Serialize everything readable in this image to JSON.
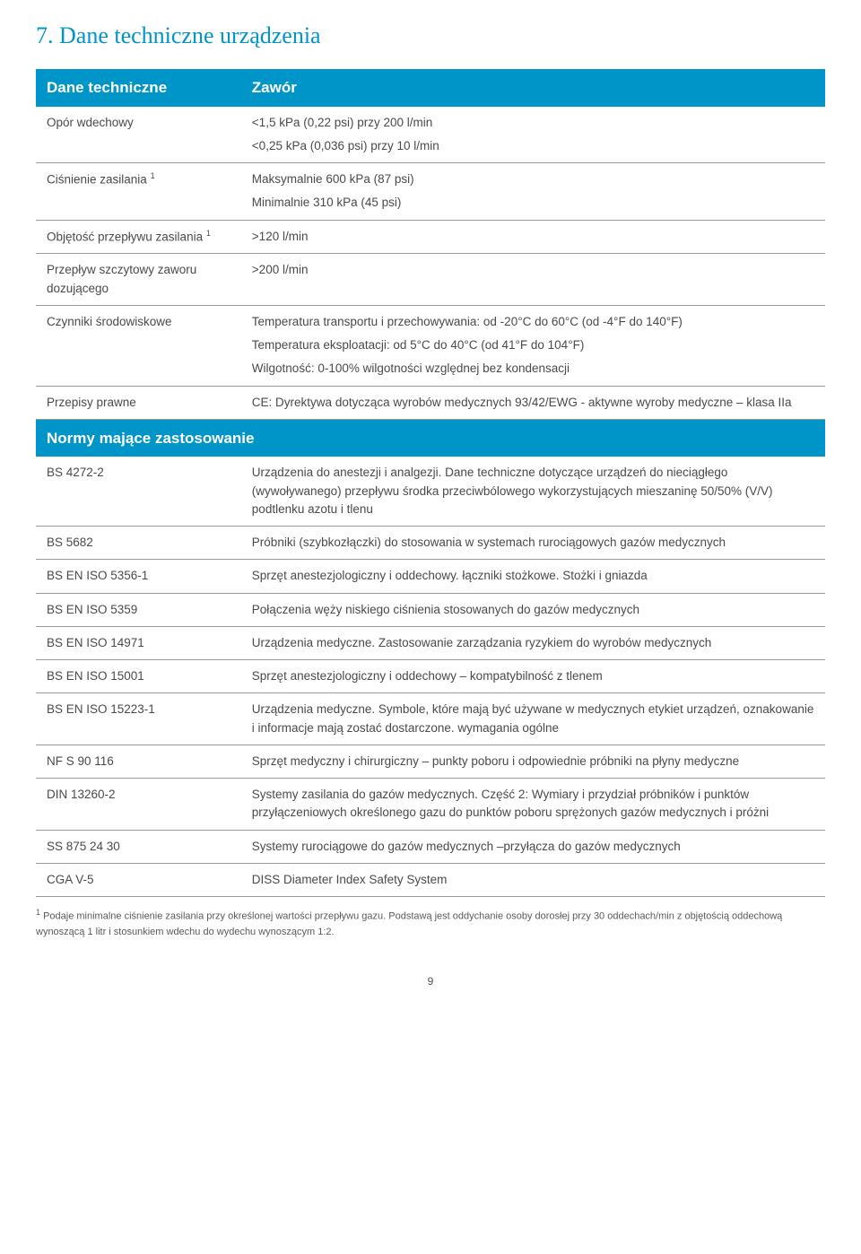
{
  "section": {
    "number": "7.",
    "title": "Dane techniczne urządzenia"
  },
  "tableA": {
    "header": {
      "left": "Dane techniczne",
      "right": "Zawór"
    },
    "rows": [
      {
        "label": "Opór wdechowy",
        "values": [
          "<1,5 kPa (0,22 psi) przy 200 l/min",
          "<0,25 kPa (0,036 psi) przy 10 l/min"
        ]
      },
      {
        "label_html": "Ciśnienie zasilania <sup class='s1'>1</sup>",
        "values": [
          "Maksymalnie 600 kPa (87 psi)",
          "Minimalnie 310 kPa (45 psi)"
        ]
      },
      {
        "label_html": "Objętość przepływu zasilania <sup class='s1'>1</sup>",
        "values": [
          ">120 l/min"
        ]
      },
      {
        "label": "Przepływ szczytowy zaworu dozującego",
        "values": [
          ">200 l/min"
        ]
      },
      {
        "label": "Czynniki środowiskowe",
        "values": [
          "Temperatura transportu i przechowywania: od -20°C do 60°C (od -4°F do 140°F)",
          "Temperatura eksploatacji: od 5°C do 40°C (od 41°F do 104°F)",
          "Wilgotność: 0-100% wilgotności względnej bez kondensacji"
        ]
      },
      {
        "label": "Przepisy prawne",
        "values": [
          "CE: Dyrektywa dotycząca wyrobów medycznych 93/42/EWG - aktywne wyroby medyczne – klasa IIa"
        ]
      }
    ]
  },
  "tableB": {
    "header": "Normy mające zastosowanie",
    "rows": [
      {
        "label": "BS 4272-2",
        "value": "Urządzenia do anestezji i analgezji. Dane techniczne dotyczące urządzeń do nieciągłego (wywoływanego) przepływu środka przeciwbólowego wykorzystujących mieszaninę 50/50% (V/V) podtlenku azotu i tlenu"
      },
      {
        "label": "BS 5682",
        "value": "Próbniki (szybkozłączki) do stosowania w systemach rurociągowych gazów medycznych"
      },
      {
        "label": "BS EN ISO 5356-1",
        "value": "Sprzęt anestezjologiczny i oddechowy. łączniki stożkowe. Stożki i gniazda"
      },
      {
        "label": "BS EN ISO 5359",
        "value": "Połączenia węży niskiego ciśnienia stosowanych do gazów medycznych"
      },
      {
        "label": "BS EN ISO 14971",
        "value": "Urządzenia medyczne. Zastosowanie zarządzania ryzykiem do wyrobów medycznych"
      },
      {
        "label": "BS EN ISO 15001",
        "value": "Sprzęt anestezjologiczny i oddechowy – kompatybilność z tlenem"
      },
      {
        "label": "BS EN ISO 15223-1",
        "value": "Urządzenia medyczne. Symbole, które mają być używane w medycznych etykiet urządzeń, oznakowanie i informacje mają zostać dostarczone. wymagania ogólne"
      },
      {
        "label": "NF S 90 116",
        "value": "Sprzęt medyczny i chirurgiczny – punkty poboru i odpowiednie próbniki na płyny medyczne"
      },
      {
        "label": "DIN 13260-2",
        "value": "Systemy zasilania do gazów medycznych. Część 2: Wymiary i przydział próbników i punktów przyłączeniowych określonego gazu do punktów poboru sprężonych gazów medycznych i próżni"
      },
      {
        "label": "SS 875 24 30",
        "value": "Systemy rurociągowe do gazów medycznych –przyłącza do gazów medycznych"
      },
      {
        "label": "CGA V-5",
        "value": "DISS Diameter Index Safety System"
      }
    ]
  },
  "footnote_html": "<sup class='s1'>1</sup> Podaje minimalne ciśnienie zasilania przy określonej wartości przepływu gazu. Podstawą jest oddychanie osoby dorosłej przy 30 oddechach/min z objętością oddechową wynoszącą 1 litr i stosunkiem wdechu do wydechu wynoszącym 1:2.",
  "page_number": "9",
  "colors": {
    "accent": "#0095c8",
    "text": "#4a4a4a",
    "rule": "#9a9a9a",
    "bg": "#ffffff"
  }
}
